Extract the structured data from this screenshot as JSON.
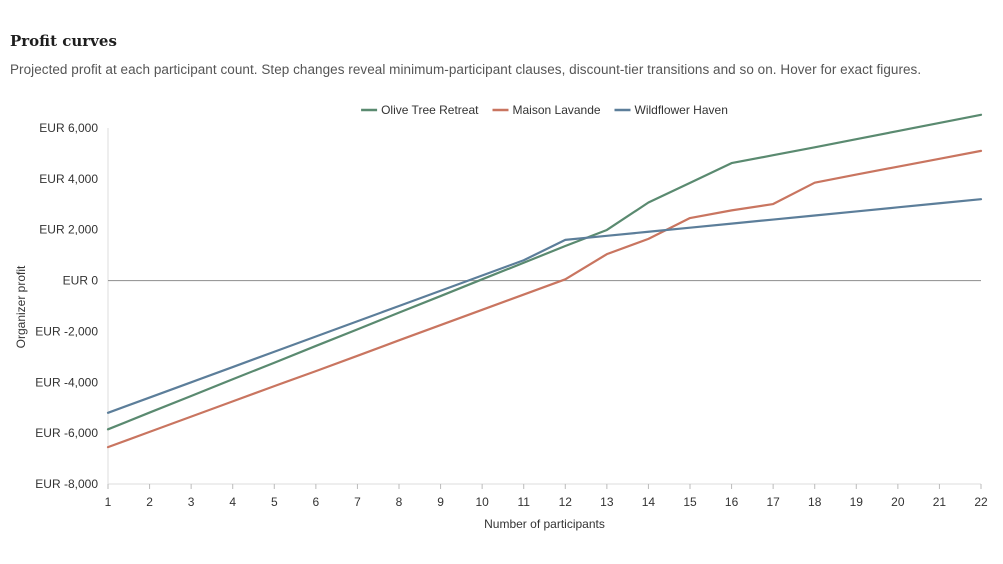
{
  "header": {
    "title": "Profit curves",
    "subtitle": "Projected profit at each participant count. Step changes reveal minimum-participant clauses, discount-tier transitions and so on. Hover for exact figures."
  },
  "chart_data": {
    "type": "line",
    "xlabel": "Number of participants",
    "ylabel": "Organizer profit",
    "xlim": [
      1,
      22
    ],
    "ylim": [
      -8000,
      6000
    ],
    "x": [
      1,
      2,
      3,
      4,
      5,
      6,
      7,
      8,
      9,
      10,
      11,
      12,
      13,
      14,
      15,
      16,
      17,
      18,
      19,
      20,
      21,
      22
    ],
    "y_ticks": [
      6000,
      4000,
      2000,
      0,
      -2000,
      -4000,
      -6000,
      -8000
    ],
    "y_tick_labels": [
      "EUR 6,000",
      "EUR 4,000",
      "EUR 2,000",
      "EUR 0",
      "EUR -2,000",
      "EUR -4,000",
      "EUR -6,000",
      "EUR -8,000"
    ],
    "legend_position": "top-center",
    "zero_line": true,
    "series": [
      {
        "name": "Olive Tree Retreat",
        "color": "#5a8a70",
        "values": [
          -5850,
          -5190,
          -4540,
          -3880,
          -3230,
          -2570,
          -1920,
          -1260,
          -610,
          50,
          700,
          1360,
          1990,
          3070,
          3840,
          4620,
          4930,
          5240,
          5560,
          5880,
          6200,
          6520
        ]
      },
      {
        "name": "Maison Lavande",
        "color": "#c97560",
        "values": [
          -6550,
          -5950,
          -5350,
          -4750,
          -4150,
          -3560,
          -2960,
          -2350,
          -1750,
          -1150,
          -550,
          50,
          1040,
          1640,
          2460,
          2760,
          3010,
          3850,
          4170,
          4480,
          4790,
          5100
        ]
      },
      {
        "name": "Wildflower Haven",
        "color": "#5c7e9a",
        "values": [
          -5200,
          -4600,
          -4000,
          -3400,
          -2800,
          -2200,
          -1600,
          -1000,
          -400,
          200,
          800,
          1600,
          1760,
          1920,
          2080,
          2240,
          2400,
          2560,
          2720,
          2880,
          3040,
          3200
        ]
      }
    ]
  }
}
